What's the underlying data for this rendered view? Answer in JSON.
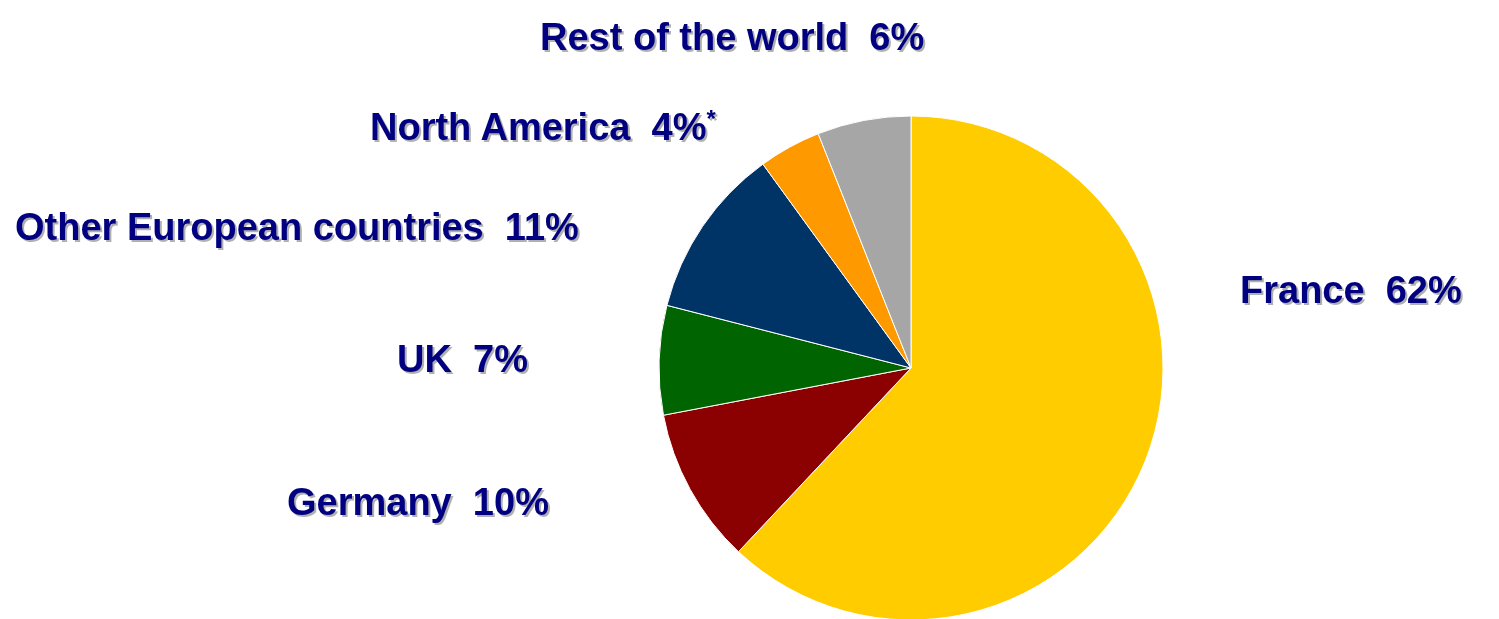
{
  "chart_data": {
    "type": "pie",
    "categories": [
      "France",
      "Germany",
      "UK",
      "Other European countries",
      "North America",
      "Rest of the world"
    ],
    "values": [
      62,
      10,
      7,
      11,
      4,
      6
    ],
    "value_labels": [
      "62%",
      "10%",
      "7%",
      "11%",
      "4%$^{*}$",
      "6%"
    ],
    "colors": [
      "#ffcc00",
      "#8b0000",
      "#006400",
      "#003366",
      "#ff9900",
      "#a6a6a6"
    ]
  }
}
